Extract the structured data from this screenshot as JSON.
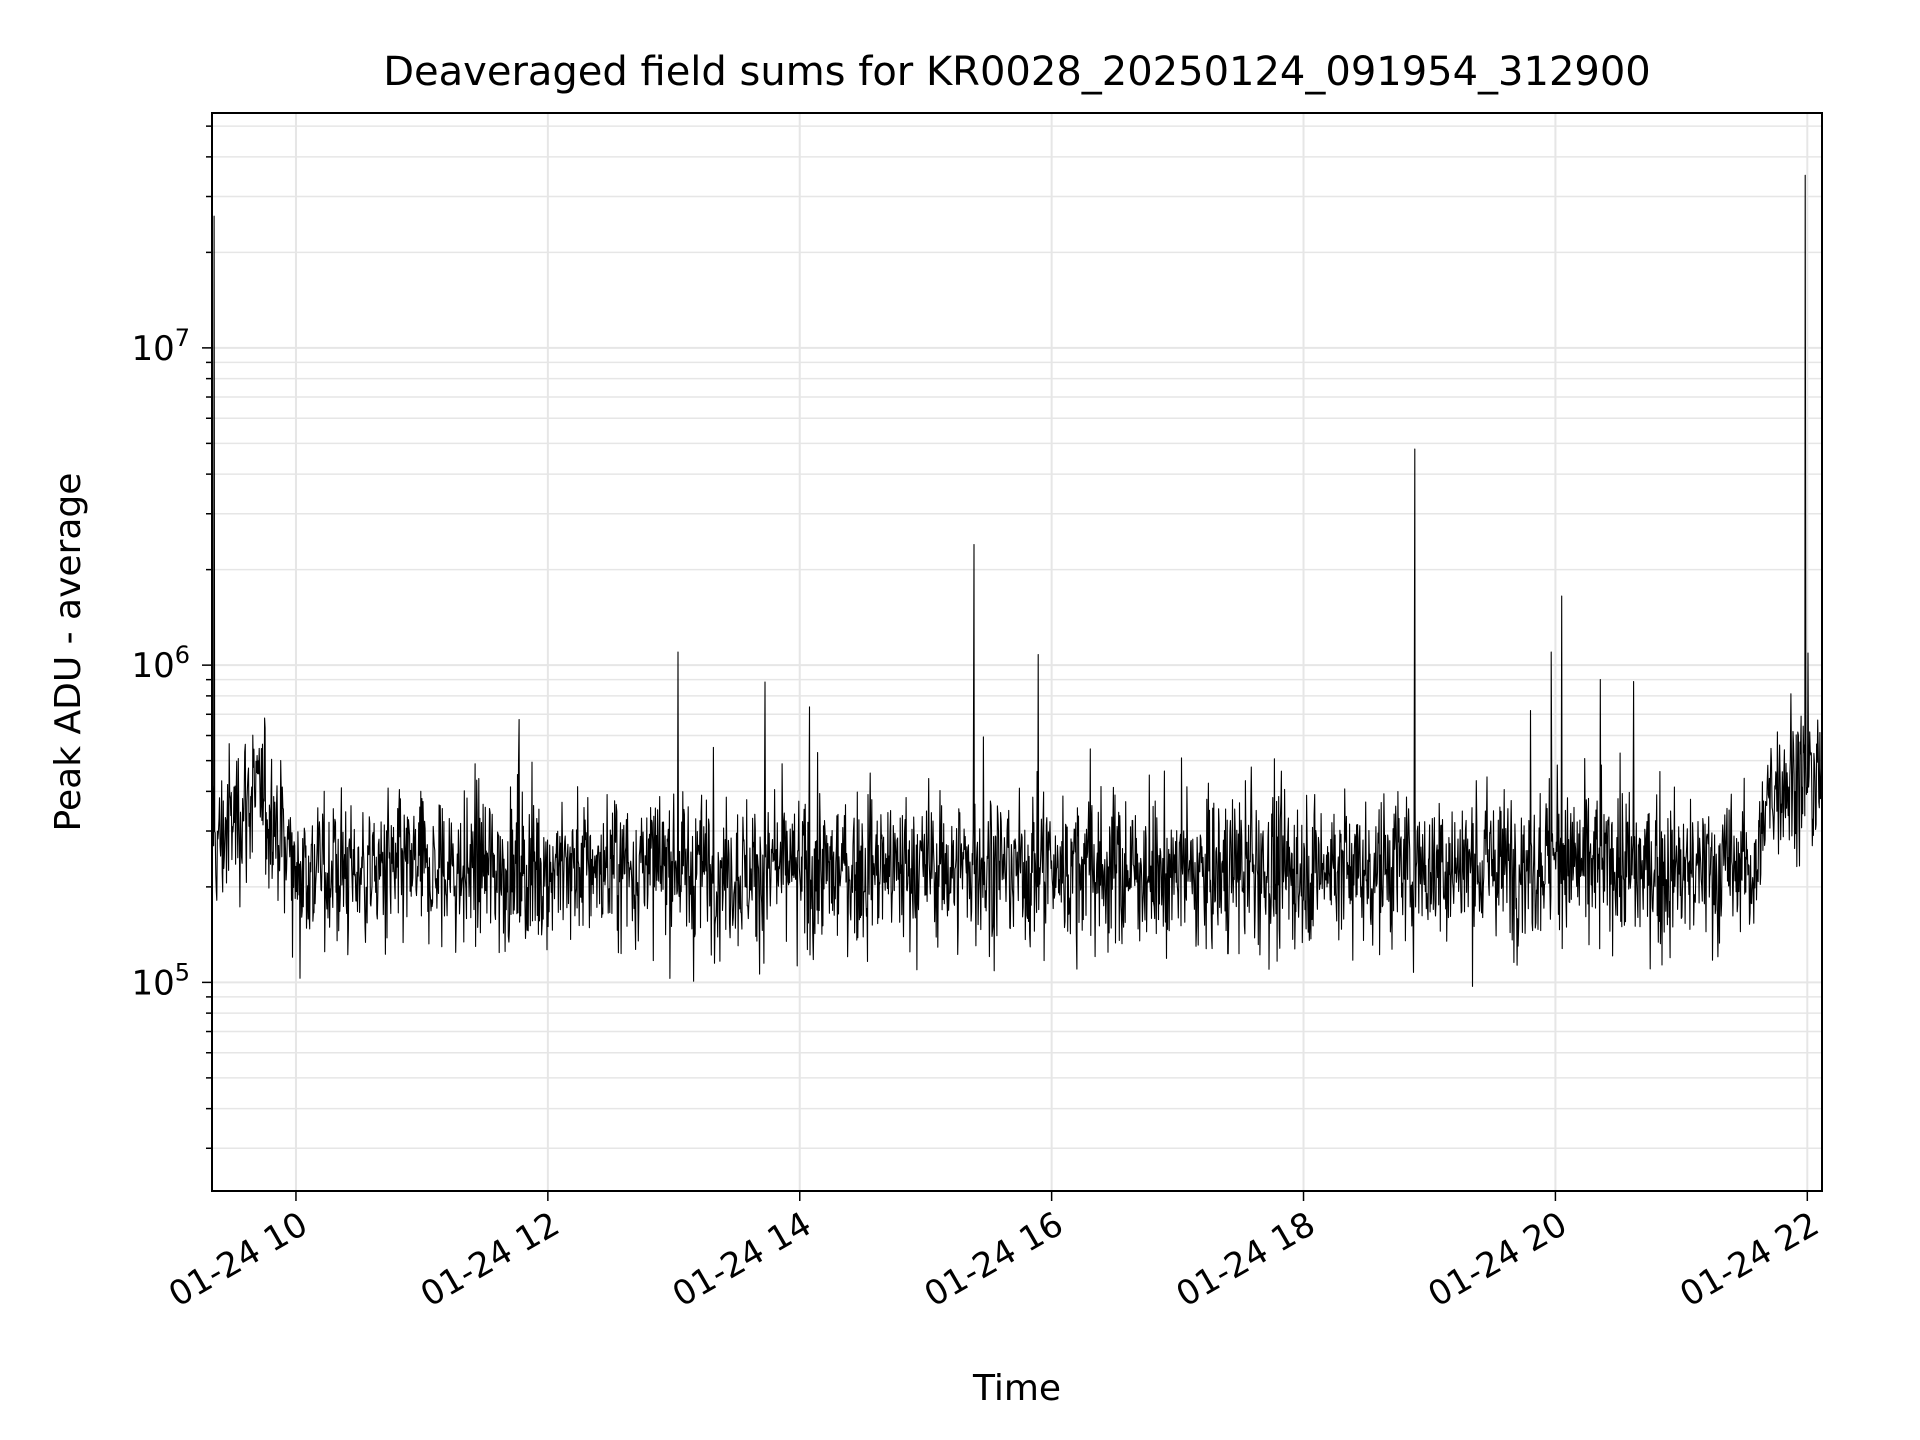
{
  "chart_data": {
    "type": "line",
    "title": "Deaveraged field sums for KR0028_20250124_091954_312900",
    "xlabel": "Time",
    "ylabel": "Peak ADU - average",
    "y_scale": "log",
    "ylim": [
      22000,
      55000000
    ],
    "xlim": [
      "2025-01-24 09:20",
      "2025-01-24 22:07"
    ],
    "x_ticks": [
      {
        "at": "2025-01-24 10:00",
        "label": "01-24 10"
      },
      {
        "at": "2025-01-24 12:00",
        "label": "01-24 12"
      },
      {
        "at": "2025-01-24 14:00",
        "label": "01-24 14"
      },
      {
        "at": "2025-01-24 16:00",
        "label": "01-24 16"
      },
      {
        "at": "2025-01-24 18:00",
        "label": "01-24 18"
      },
      {
        "at": "2025-01-24 20:00",
        "label": "01-24 20"
      },
      {
        "at": "2025-01-24 22:00",
        "label": "01-24 22"
      }
    ],
    "y_ticks": [
      {
        "value": 100000,
        "base": "10",
        "exp": "5"
      },
      {
        "value": 1000000,
        "base": "10",
        "exp": "6"
      },
      {
        "value": 10000000,
        "base": "10",
        "exp": "7"
      }
    ],
    "grid": true,
    "line_color": "#000000",
    "grid_color": "#e6e6e6",
    "series": [
      {
        "x": [
          "2025-01-24 09:20",
          "2025-01-24 09:40",
          "2025-01-24 10:00",
          "2025-01-24 11:00",
          "2025-01-24 12:00",
          "2025-01-24 13:00",
          "2025-01-24 14:00",
          "2025-01-24 15:00",
          "2025-01-24 16:00",
          "2025-01-24 17:00",
          "2025-01-24 18:00",
          "2025-01-24 19:00",
          "2025-01-24 20:00",
          "2025-01-24 21:00",
          "2025-01-24 21:36",
          "2025-01-24 21:45",
          "2025-01-24 22:07"
        ],
        "y": [
          250000,
          400000,
          230000,
          220000,
          230000,
          230000,
          220000,
          230000,
          230000,
          220000,
          230000,
          230000,
          240000,
          220000,
          230000,
          450000,
          420000
        ]
      }
    ],
    "spikes": [
      {
        "x": "2025-01-24 09:21",
        "y": 26000000
      },
      {
        "x": "2025-01-24 13:02",
        "y": 1100000
      },
      {
        "x": "2025-01-24 15:23",
        "y": 2400000
      },
      {
        "x": "2025-01-24 18:53",
        "y": 4800000
      },
      {
        "x": "2025-01-24 19:58",
        "y": 1100000
      },
      {
        "x": "2025-01-24 20:03",
        "y": 1650000
      },
      {
        "x": "2025-01-24 21:59",
        "y": 35000000
      }
    ]
  }
}
